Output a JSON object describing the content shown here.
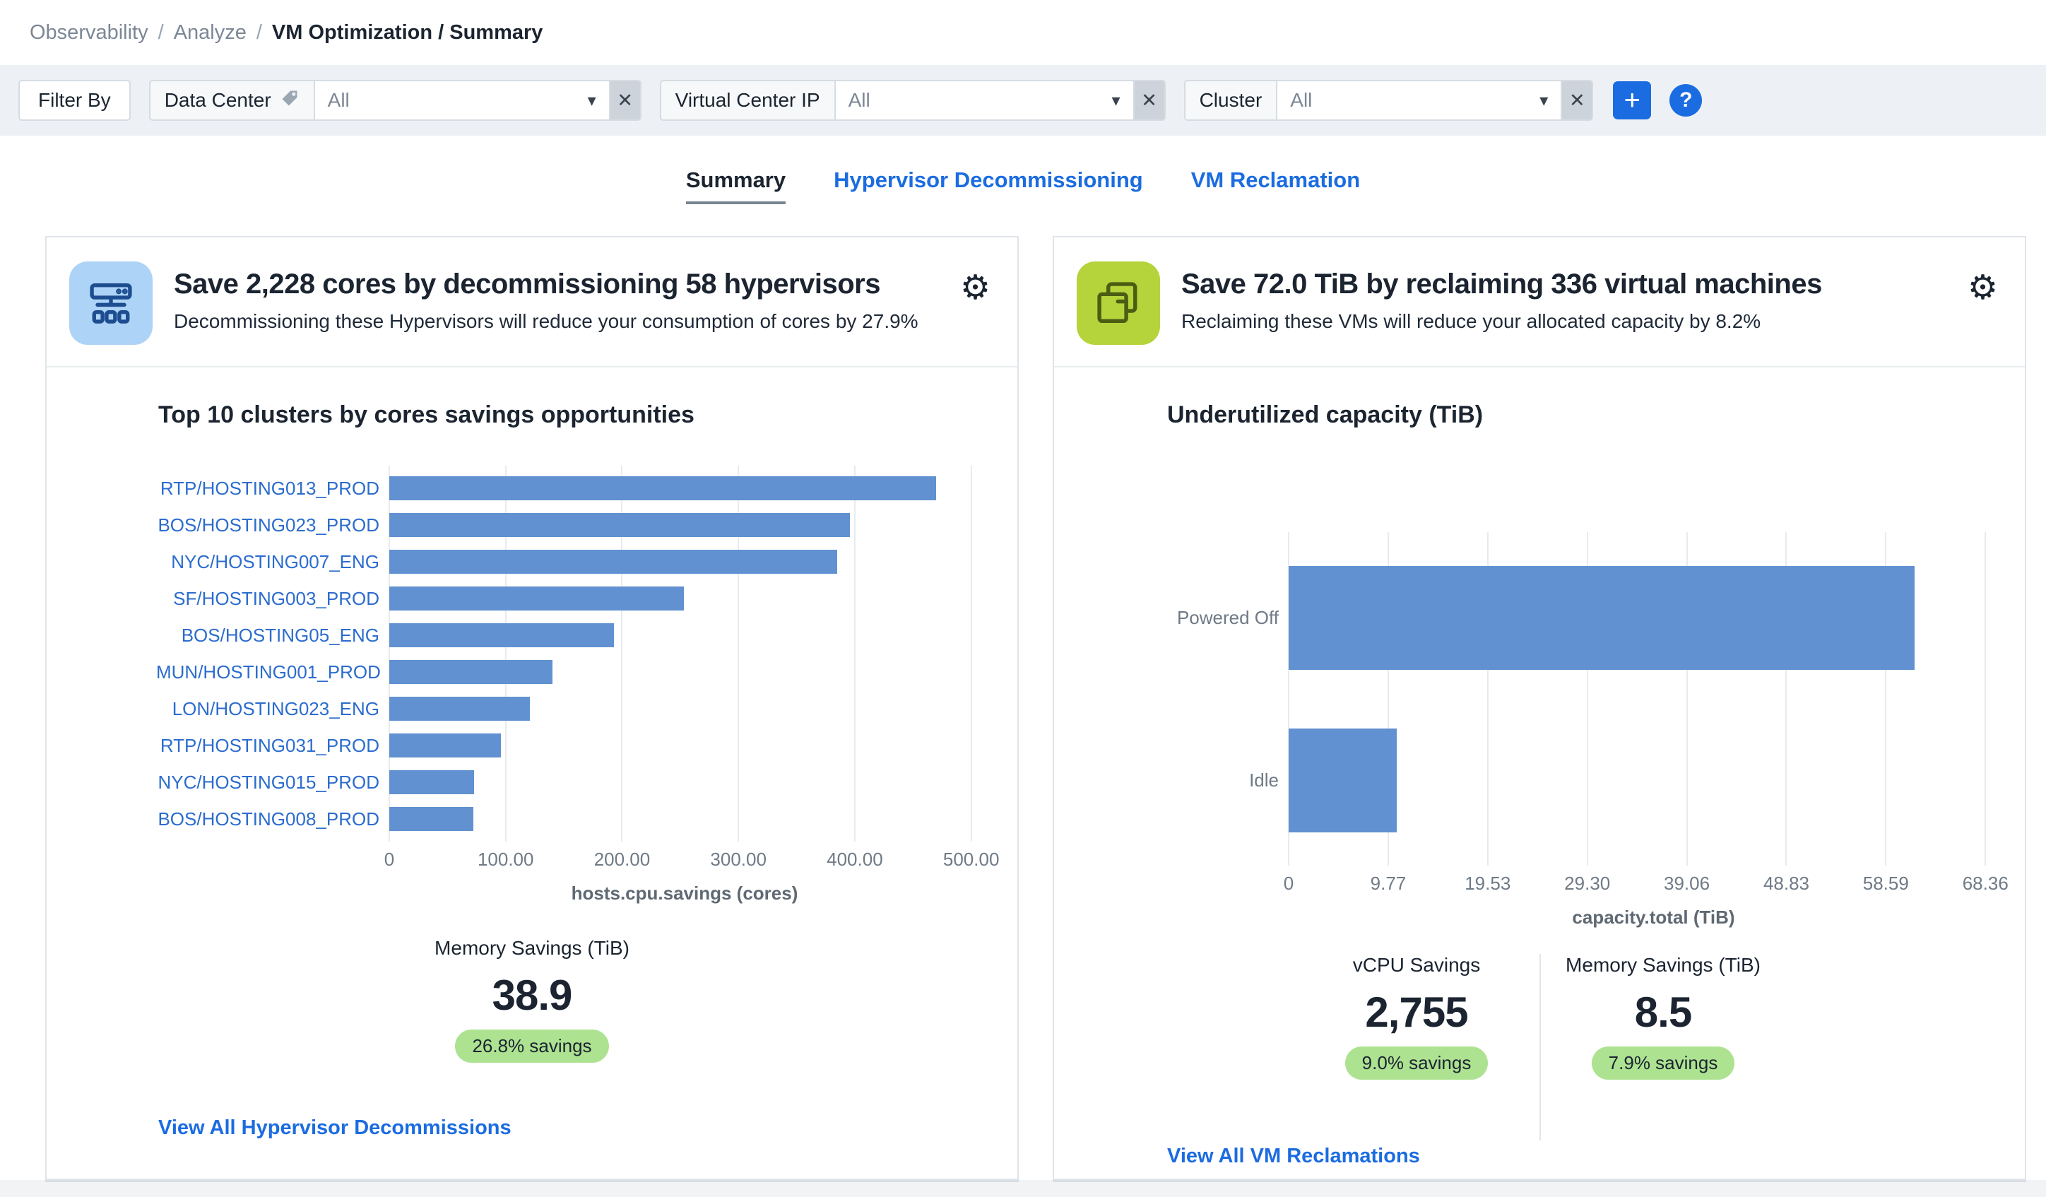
{
  "breadcrumb": {
    "items": [
      "Observability",
      "Analyze"
    ],
    "separator": "/",
    "current": "VM Optimization / Summary"
  },
  "filter_bar": {
    "filter_by_label": "Filter By",
    "filters": [
      {
        "label": "Data Center",
        "value": "All"
      },
      {
        "label": "Virtual Center IP",
        "value": "All"
      },
      {
        "label": "Cluster",
        "value": "All"
      }
    ],
    "clear_glyph": "✕",
    "caret_glyph": "▾",
    "add_label": "+",
    "help_label": "?"
  },
  "tabs": [
    {
      "label": "Summary",
      "active": true
    },
    {
      "label": "Hypervisor Decommissioning",
      "active": false
    },
    {
      "label": "VM Reclamation",
      "active": false
    }
  ],
  "cards": {
    "hypervisor": {
      "title": "Save 2,228 cores by decommissioning 58 hypervisors",
      "subtitle": "Decommissioning these Hypervisors will reduce your consumption of cores by 27.9%",
      "chart_title": "Top 10 clusters by cores savings opportunities",
      "stat_label": "Memory Savings (TiB)",
      "stat_value": "38.9",
      "stat_badge": "26.8% savings",
      "link": "View All Hypervisor Decommissions"
    },
    "vm": {
      "title": "Save 72.0 TiB by reclaiming 336 virtual machines",
      "subtitle": "Reclaiming these VMs will reduce your allocated capacity by 8.2%",
      "chart_title": "Underutilized capacity (TiB)",
      "stats": [
        {
          "label": "vCPU Savings",
          "value": "2,755",
          "badge": "9.0% savings"
        },
        {
          "label": "Memory Savings (TiB)",
          "value": "8.5",
          "badge": "7.9% savings"
        }
      ],
      "link": "View All VM Reclamations"
    }
  },
  "chart_data": [
    {
      "type": "bar",
      "orientation": "horizontal",
      "title": "Top 10 clusters by cores savings opportunities",
      "categories": [
        "RTP/HOSTING013_PROD",
        "BOS/HOSTING023_PROD",
        "NYC/HOSTING007_ENG",
        "SF/HOSTING003_PROD",
        "BOS/HOSTING05_ENG",
        "MUN/HOSTING001_PROD",
        "LON/HOSTING023_ENG",
        "RTP/HOSTING031_PROD",
        "NYC/HOSTING015_PROD",
        "BOS/HOSTING008_PROD"
      ],
      "values": [
        470,
        396,
        385,
        253,
        193,
        140,
        121,
        96,
        73,
        72
      ],
      "xlabel": "hosts.cpu.savings (cores)",
      "xlim": [
        0,
        507.5
      ],
      "tick_values": [
        0,
        100,
        200,
        300,
        400,
        500
      ],
      "tick_labels": [
        "0",
        "100.00",
        "200.00",
        "300.00",
        "400.00",
        "500.00"
      ],
      "grid": true,
      "labels_clickable": true,
      "label_name": "cluster-link"
    },
    {
      "type": "bar",
      "orientation": "horizontal",
      "title": "Underutilized capacity (TiB)",
      "categories": [
        "Powered Off",
        "Idle"
      ],
      "values": [
        61.4,
        10.6
      ],
      "xlabel": "capacity.total (TiB)",
      "xlim": [
        0,
        71.6
      ],
      "tick_values": [
        0,
        9.77,
        19.53,
        29.3,
        39.06,
        48.83,
        58.59,
        68.36
      ],
      "tick_labels": [
        "0",
        "9.77",
        "19.53",
        "29.30",
        "39.06",
        "48.83",
        "58.59",
        "68.36"
      ],
      "grid": true,
      "labels_clickable": false,
      "label_name": "category-label"
    }
  ],
  "colors": {
    "bar": "#6191d1",
    "accent_blue": "#1b6ce0",
    "link_blue": "#2b6cce",
    "badge_green_bg": "#ade291",
    "icon_blue_bg": "#add3f6",
    "icon_blue_stroke": "#1d4d90",
    "icon_green_bg": "#b5d33b",
    "icon_green_stroke": "#4c5c12",
    "filter_bar_bg": "#edf1f5",
    "text_dark": "#1b2430",
    "text_gray": "#6f7a86"
  }
}
